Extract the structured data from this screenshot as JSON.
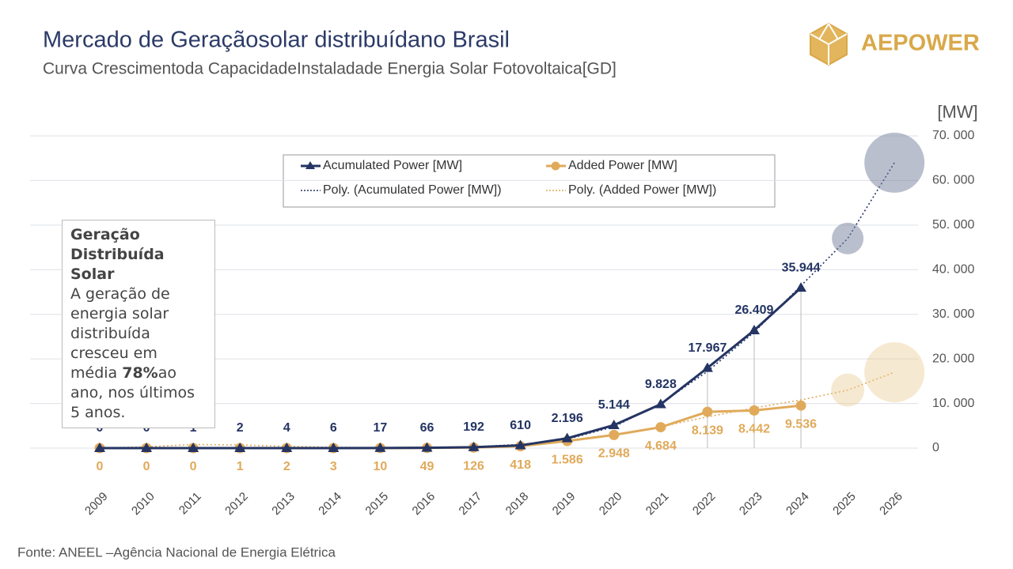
{
  "chart_data": {
    "type": "line",
    "title": "Mercado de Geraçãosolar distribuídano Brasil",
    "subtitle": "Curva Crescimentoda CapacidadeInstaladade Energia Solar Fotovoltaica[GD]",
    "y_label": "[MW]",
    "source": "Fonte: ANEEL –Agência Nacional de Energia Elétrica",
    "logo": "AEPOWER",
    "annotation": {
      "title": "Geração Distribuída Solar",
      "text_before": "A geração de energia solar distribuída cresceu em média ",
      "highlight": "78%",
      "text_after": "ao ano, nos últimos 5 anos."
    },
    "categories": [
      "2009",
      "2010",
      "2011",
      "2012",
      "2013",
      "2014",
      "2015",
      "2016",
      "2017",
      "2018",
      "2019",
      "2020",
      "2021",
      "2022",
      "2023",
      "2024",
      "2025",
      "2026"
    ],
    "series": [
      {
        "name": "Acumulated Power [MW]",
        "color": "#243463",
        "marker": "triangle",
        "values": [
          0,
          0,
          1,
          2,
          4,
          6,
          17,
          66,
          192,
          610,
          2196,
          5144,
          9828,
          17967,
          26409,
          35944,
          null,
          null
        ],
        "value_labels": [
          "0",
          "0",
          "1",
          "2",
          "4",
          "6",
          "17",
          "66",
          "192",
          "610",
          "2.196",
          "5.144",
          "9.828",
          "17.967",
          "26.409",
          "35.944",
          null,
          null
        ]
      },
      {
        "name": "Added Power [MW]",
        "color": "#e0aa5a",
        "marker": "circle",
        "values": [
          0,
          0,
          0,
          1,
          2,
          3,
          10,
          49,
          126,
          418,
          1586,
          2948,
          4684,
          8139,
          8442,
          9536,
          null,
          null
        ],
        "value_labels": [
          "0",
          "0",
          "0",
          "1",
          "2",
          "3",
          "10",
          "49",
          "126",
          "418",
          "1.586",
          "2.948",
          "4.684",
          "8.139",
          "8.442",
          "9.536",
          null,
          null
        ]
      }
    ],
    "trendlines": [
      {
        "name": "Poly. (Acumulated Power [MW])",
        "color": "#243463",
        "values": [
          0,
          0,
          0,
          0,
          0,
          0,
          0,
          100,
          300,
          800,
          2000,
          4800,
          10000,
          17200,
          26000,
          36400,
          47000,
          64000
        ]
      },
      {
        "name": "Poly. (Added Power [MW])",
        "color": "#e0aa5a",
        "values": [
          0,
          300,
          800,
          700,
          400,
          200,
          100,
          200,
          300,
          600,
          1500,
          3000,
          4800,
          7000,
          9000,
          10800,
          13000,
          17000
        ]
      }
    ],
    "ylim": [
      0,
      70000
    ],
    "yticks": [
      0,
      {
        "value": 10000,
        "label": "10. 000"
      },
      {
        "value": 20000,
        "label": "20. 000"
      },
      {
        "value": 30000,
        "label": "30. 000"
      },
      {
        "value": 40000,
        "label": "40. 000"
      },
      {
        "value": 50000,
        "label": "50. 000"
      },
      {
        "value": 60000,
        "label": "60. 000"
      },
      {
        "value": 70000,
        "label": "70. 000"
      }
    ],
    "grid": true
  }
}
